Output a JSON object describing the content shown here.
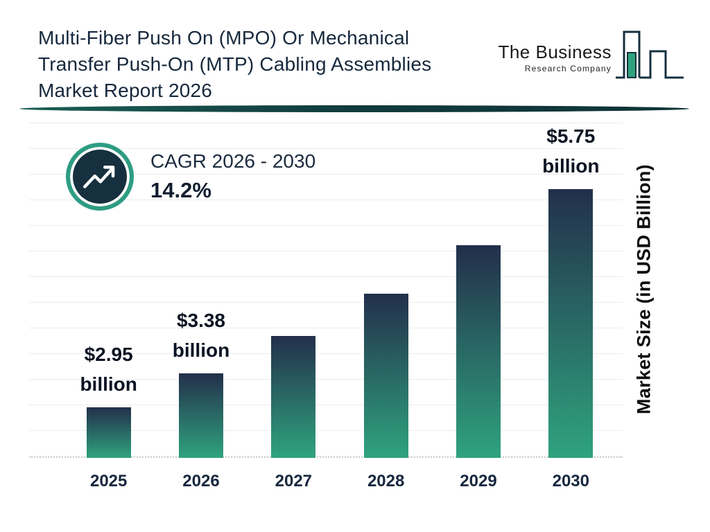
{
  "page": {
    "title_lines": [
      "Multi-Fiber Push On (MPO) Or Mechanical",
      "Transfer Push-On (MTP) Cabling Assemblies",
      "Market Report 2026"
    ]
  },
  "logo": {
    "name_top": "The Business",
    "name_bottom": "Research Company"
  },
  "cagr": {
    "label": "CAGR 2026 - 2030",
    "value": "14.2%"
  },
  "icons": {
    "trend": "trending-up-arrow-icon",
    "logo": "bar-chart-icon"
  },
  "theme": {
    "accent_teal": "#2d9c82",
    "dark_navy": "#16303f",
    "divider_teal": "#14423e"
  },
  "chart_data": {
    "type": "bar",
    "title": "Multi-Fiber Push On (MPO) Or Mechanical Transfer Push-On (MTP) Cabling Assemblies Market Report 2026",
    "categories": [
      "2025",
      "2026",
      "2027",
      "2028",
      "2029",
      "2030"
    ],
    "values": [
      2.95,
      3.38,
      3.86,
      4.41,
      5.03,
      5.75
    ],
    "unit": "USD Billion",
    "ylabel": "Market Size (in USD Billion)",
    "xlabel": "",
    "grid": true,
    "legend": false,
    "baseline_value": 2.3,
    "bar_labels": [
      {
        "index": 0,
        "lines": [
          "$2.95",
          "billion"
        ]
      },
      {
        "index": 1,
        "lines": [
          "$3.38",
          "billion"
        ]
      },
      {
        "index": 5,
        "lines": [
          "$5.75",
          "billion"
        ]
      }
    ],
    "colors": {
      "bar_top": "#232f4b",
      "bar_bottom": "#2fa37e"
    }
  }
}
